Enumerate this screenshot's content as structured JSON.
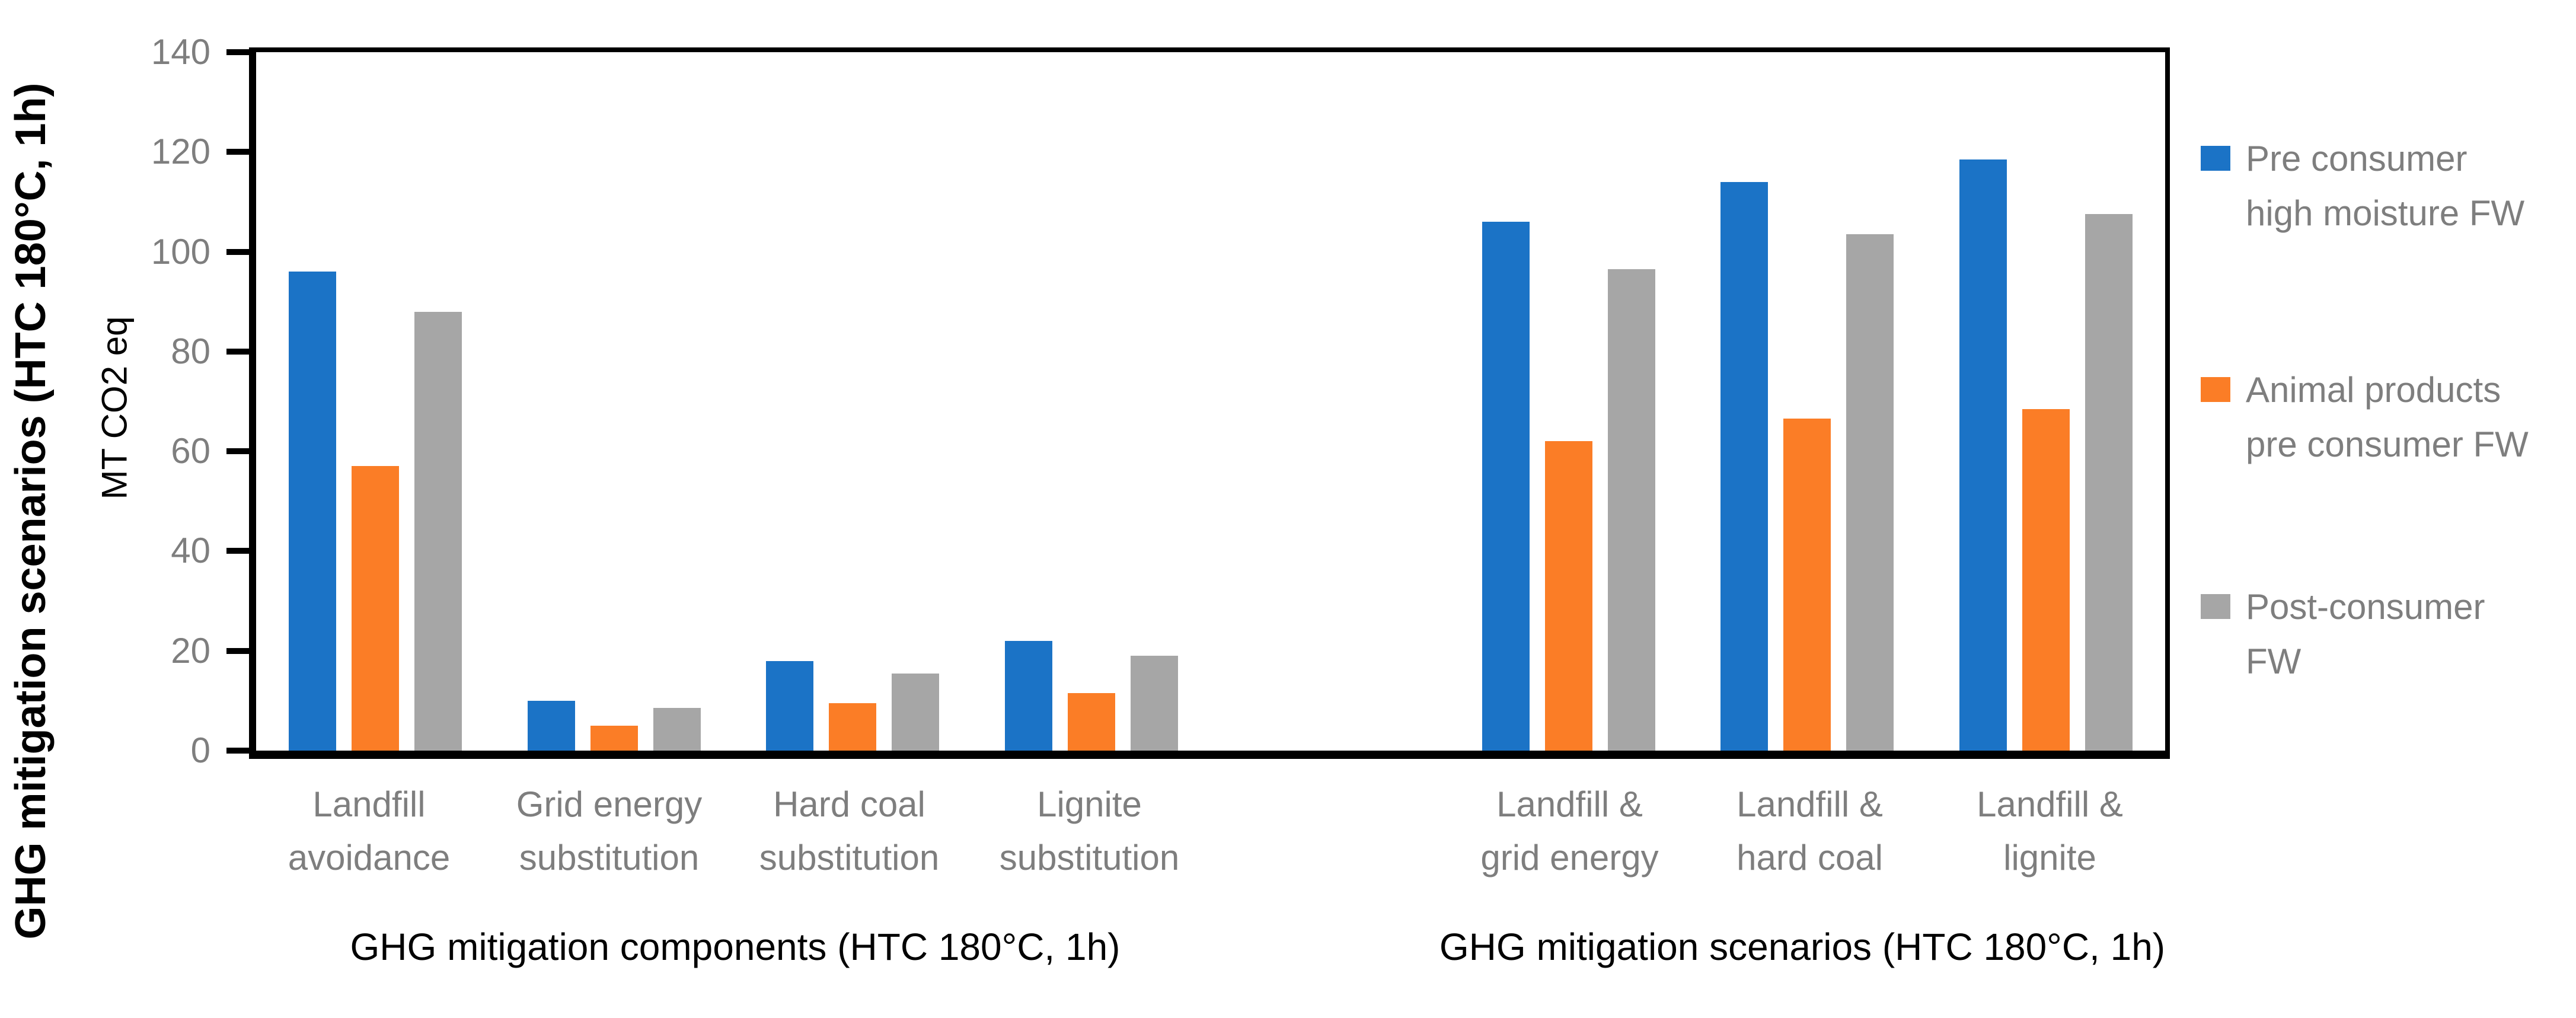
{
  "chart_data": {
    "type": "bar",
    "outer_y_title": "GHG mitigation scenarios (HTC 180°C, 1h)",
    "ylabel": "MT CO2 eq",
    "ylim": [
      0,
      140
    ],
    "yticks": [
      0,
      20,
      40,
      60,
      80,
      100,
      120,
      140
    ],
    "grid": false,
    "legend_position": "right",
    "categories": [
      "Landfill\navoidance",
      "Grid energy\nsubstitution",
      "Hard coal\nsubstitution",
      "Lignite\nsubstitution",
      "Landfill &\ngrid energy",
      "Landfill &\nhard coal",
      "Landfill &\nlignite"
    ],
    "clusters": [
      {
        "title": "GHG mitigation components (HTC 180°C, 1h)",
        "category_indexes": [
          0,
          1,
          2,
          3
        ]
      },
      {
        "title": "GHG mitigation scenarios (HTC 180°C, 1h)",
        "category_indexes": [
          4,
          5,
          6
        ]
      }
    ],
    "series": [
      {
        "name": "Pre consumer\nhigh moisture FW",
        "color": "#1b73c6",
        "values": [
          96,
          10,
          18,
          22,
          106,
          114,
          118.5
        ]
      },
      {
        "name": "Animal products\npre consumer FW",
        "color": "#fb7d26",
        "values": [
          57,
          5,
          9.5,
          11.5,
          62,
          66.5,
          68.5
        ]
      },
      {
        "name": "Post-consumer\nFW",
        "color": "#a6a6a6",
        "values": [
          88,
          8.5,
          15.5,
          19,
          96.5,
          103.5,
          107.5
        ]
      }
    ]
  },
  "style_colors": {
    "axis_line": "#000000",
    "tick_label": "#7e7e7e",
    "category_label": "#7e7e7e",
    "legend_text": "#7e7e7e",
    "axis_title_text": "#000000",
    "background": "#ffffff"
  }
}
